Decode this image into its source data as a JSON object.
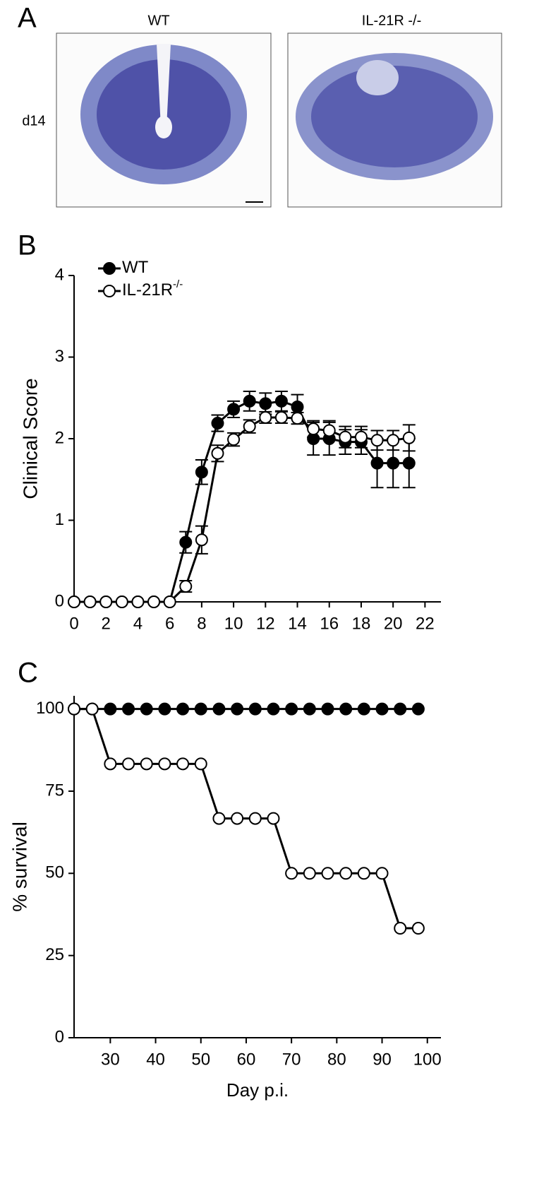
{
  "panel_a": {
    "label": "A",
    "columns": [
      "WT",
      "IL-21R -/-"
    ],
    "row_label": "d14"
  },
  "chart_data": [
    {
      "type": "line",
      "panel_label": "B",
      "y_label": "Clinical Score",
      "x": [
        0,
        1,
        2,
        3,
        4,
        5,
        6,
        7,
        8,
        9,
        10,
        11,
        12,
        13,
        14,
        15,
        16,
        17,
        18,
        19,
        20,
        21
      ],
      "series": [
        {
          "name": "WT",
          "color": "#000000",
          "marker": "filled",
          "values": [
            0,
            0,
            0,
            0,
            0,
            0,
            0,
            0.73,
            1.59,
            2.19,
            2.36,
            2.46,
            2.43,
            2.46,
            2.39,
            2.0,
            2.0,
            1.96,
            1.96,
            1.7,
            1.7,
            1.7
          ],
          "errors": [
            null,
            null,
            null,
            null,
            null,
            null,
            null,
            0.13,
            0.15,
            0.1,
            0.1,
            0.12,
            0.13,
            0.12,
            0.15,
            0.2,
            0.2,
            0.15,
            0.15,
            0.3,
            0.3,
            0.3
          ]
        },
        {
          "name": "IL-21R",
          "name_superscript": "-/-",
          "color": "#000000",
          "marker": "open",
          "values": [
            0,
            0,
            0,
            0,
            0,
            0,
            0,
            0.19,
            0.76,
            1.82,
            1.99,
            2.15,
            2.26,
            2.26,
            2.25,
            2.12,
            2.1,
            2.02,
            2.02,
            1.98,
            1.98,
            2.01
          ],
          "errors": [
            null,
            null,
            null,
            null,
            null,
            null,
            null,
            0.07,
            0.17,
            0.1,
            0.08,
            0.08,
            0.07,
            0.07,
            0.07,
            0.1,
            0.12,
            0.13,
            0.13,
            0.12,
            0.12,
            0.16
          ]
        }
      ],
      "xlim": [
        0,
        23
      ],
      "xticks": [
        0,
        2,
        4,
        6,
        8,
        10,
        12,
        14,
        16,
        18,
        20,
        22
      ],
      "ylim": [
        0,
        4
      ],
      "yticks": [
        0,
        1,
        2,
        3,
        4
      ],
      "legend": "upper-left"
    },
    {
      "type": "line",
      "panel_label": "C",
      "x_label": "Day p.i.",
      "y_label": "% survival",
      "x": [
        22,
        26,
        30,
        34,
        38,
        42,
        46,
        50,
        54,
        58,
        62,
        66,
        70,
        74,
        78,
        82,
        86,
        90,
        94,
        98
      ],
      "series": [
        {
          "color": "#000000",
          "marker": "filled",
          "values": [
            100,
            100,
            100,
            100,
            100,
            100,
            100,
            100,
            100,
            100,
            100,
            100,
            100,
            100,
            100,
            100,
            100,
            100,
            100,
            100
          ]
        },
        {
          "color": "#000000",
          "marker": "open",
          "values": [
            100,
            100,
            83.3,
            83.3,
            83.3,
            83.3,
            83.3,
            83.3,
            66.7,
            66.7,
            66.7,
            66.7,
            50,
            50,
            50,
            50,
            50,
            50,
            33.3,
            33.3
          ]
        }
      ],
      "xlim": [
        22,
        103
      ],
      "xticks": [
        30,
        40,
        50,
        60,
        70,
        80,
        90,
        100
      ],
      "ylim": [
        0,
        104
      ],
      "yticks": [
        0,
        25,
        50,
        75,
        100
      ]
    }
  ]
}
